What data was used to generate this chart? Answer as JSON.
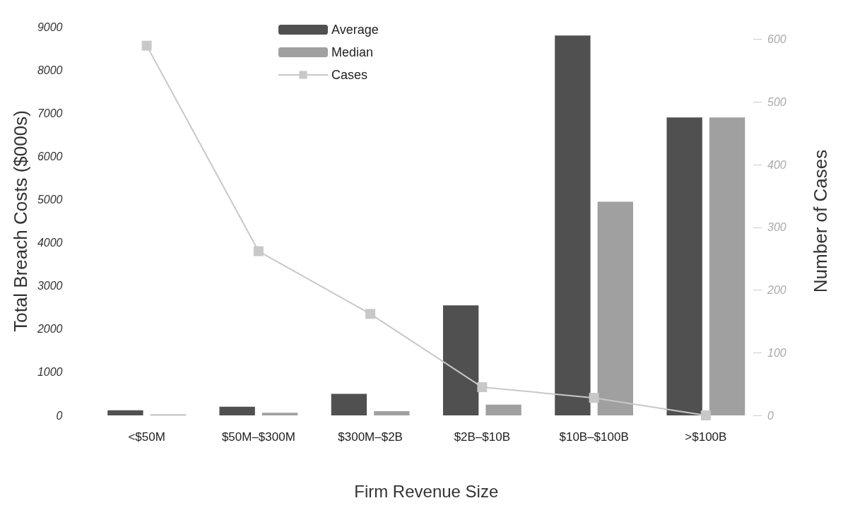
{
  "chart_data": {
    "type": "bar",
    "xlabel": "Firm Revenue Size",
    "ylabel": "Total Breach Costs ($000s)",
    "y2label": "Number of Cases",
    "categories": [
      "<$50M",
      "$50M–$300M",
      "$300M–$2B",
      "$2B–$10B",
      "$10B–$100B",
      ">$100B"
    ],
    "series": [
      {
        "name": "Average",
        "color": "#505050",
        "values": [
          120,
          200,
          500,
          2550,
          8800,
          6900
        ]
      },
      {
        "name": "Median",
        "color": "#a0a0a0",
        "values": [
          20,
          60,
          100,
          250,
          4950,
          6900
        ]
      },
      {
        "name": "Cases",
        "type": "line",
        "axis": "y2",
        "color": "#c8c8c8",
        "marker": "square",
        "values": [
          590,
          262,
          162,
          45,
          28,
          0
        ]
      }
    ],
    "ylim": [
      0,
      9000
    ],
    "yticks": [
      0,
      1000,
      2000,
      3000,
      4000,
      5000,
      6000,
      7000,
      8000,
      9000
    ],
    "y2lim": [
      0,
      620
    ],
    "y2ticks": [
      0,
      100,
      200,
      300,
      400,
      500,
      600
    ],
    "grid": false,
    "legend": "top"
  }
}
